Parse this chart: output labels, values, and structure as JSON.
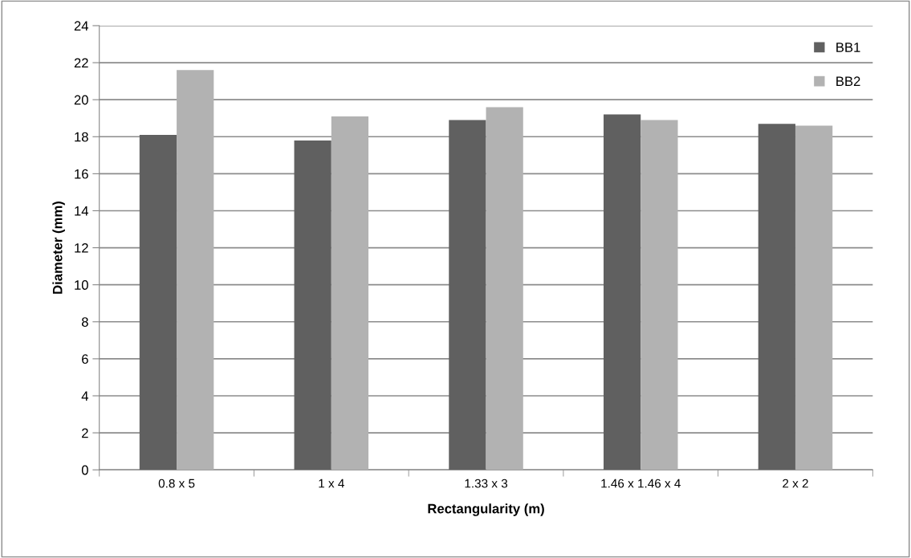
{
  "chart_data": {
    "type": "bar",
    "xlabel": "Rectangularity (m)",
    "ylabel": "Diameter (mm)",
    "categories": [
      "0.8 x 5",
      "1 x 4",
      "1.33 x 3",
      "1.46 x 1.46 x 4",
      "2 x 2"
    ],
    "series": [
      {
        "name": "BB1",
        "color": "#606060",
        "values": [
          18.1,
          17.8,
          18.9,
          19.2,
          18.7
        ]
      },
      {
        "name": "BB2",
        "color": "#b2b2b2",
        "values": [
          21.6,
          19.1,
          19.6,
          18.9,
          18.6
        ]
      }
    ],
    "ylim": [
      0,
      24
    ],
    "yticks": [
      0,
      2,
      4,
      6,
      8,
      10,
      12,
      14,
      16,
      18,
      20,
      22,
      24
    ],
    "grid": "y",
    "legend": "top right"
  }
}
